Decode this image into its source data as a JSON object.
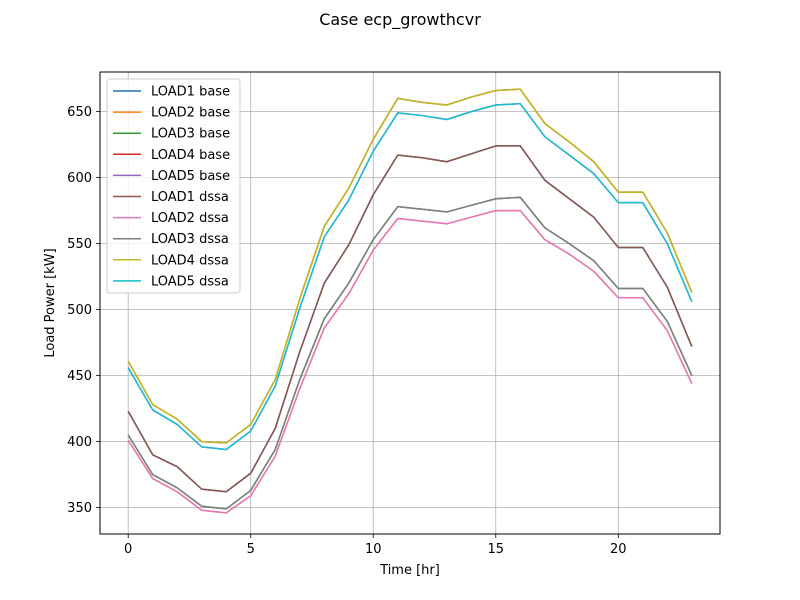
{
  "chart_data": {
    "type": "line",
    "title": "Case ecp_growthcvr",
    "xlabel": "Time [hr]",
    "ylabel": "Load Power [kW]",
    "xlim": [
      -1.15,
      24.15
    ],
    "ylim": [
      330,
      680
    ],
    "xticks": [
      0,
      5,
      10,
      15,
      20
    ],
    "yticks": [
      350,
      400,
      450,
      500,
      550,
      600,
      650
    ],
    "grid": true,
    "legend_position": "upper-left",
    "x": [
      0,
      1,
      2,
      3,
      4,
      5,
      6,
      7,
      8,
      9,
      10,
      11,
      12,
      13,
      14,
      15,
      16,
      17,
      18,
      19,
      20,
      21,
      22,
      23
    ],
    "series": [
      {
        "name": "LOAD1 base",
        "color": "#1f77b4",
        "values": [
          423,
          390,
          381,
          364,
          362,
          376,
          410,
          468,
          520,
          549,
          587,
          617,
          615,
          612,
          618,
          624,
          624,
          598,
          584,
          570,
          547,
          547,
          517,
          472
        ]
      },
      {
        "name": "LOAD2 base",
        "color": "#ff7f0e",
        "values": [
          401,
          372,
          362,
          348,
          346,
          359,
          389,
          440,
          486,
          512,
          545,
          569,
          567,
          565,
          570,
          575,
          575,
          553,
          542,
          529,
          509,
          509,
          484,
          444
        ]
      },
      {
        "name": "LOAD3 base",
        "color": "#2ca02c",
        "values": [
          405,
          375,
          365,
          351,
          349,
          363,
          394,
          447,
          493,
          520,
          553,
          578,
          576,
          574,
          579,
          584,
          585,
          562,
          550,
          537,
          516,
          516,
          491,
          450
        ]
      },
      {
        "name": "LOAD4 base",
        "color": "#d62728",
        "values": [
          461,
          428,
          417,
          400,
          399,
          413,
          447,
          508,
          563,
          592,
          629,
          660,
          657,
          655,
          661,
          666,
          667,
          641,
          627,
          612,
          589,
          589,
          558,
          513
        ]
      },
      {
        "name": "LOAD5 base",
        "color": "#9467bd",
        "values": [
          456,
          424,
          413,
          396,
          394,
          408,
          442,
          501,
          555,
          583,
          620,
          649,
          647,
          644,
          650,
          655,
          656,
          631,
          617,
          603,
          581,
          581,
          550,
          506
        ]
      },
      {
        "name": "LOAD1 dssa",
        "color": "#8c564b",
        "values": [
          423,
          390,
          381,
          364,
          362,
          376,
          410,
          468,
          520,
          549,
          587,
          617,
          615,
          612,
          618,
          624,
          624,
          598,
          584,
          570,
          547,
          547,
          517,
          472
        ]
      },
      {
        "name": "LOAD2 dssa",
        "color": "#e377c2",
        "values": [
          401,
          372,
          362,
          348,
          346,
          359,
          389,
          440,
          486,
          512,
          545,
          569,
          567,
          565,
          570,
          575,
          575,
          553,
          542,
          529,
          509,
          509,
          484,
          444
        ]
      },
      {
        "name": "LOAD3 dssa",
        "color": "#7f7f7f",
        "values": [
          405,
          375,
          365,
          351,
          349,
          363,
          394,
          447,
          493,
          520,
          553,
          578,
          576,
          574,
          579,
          584,
          585,
          562,
          550,
          537,
          516,
          516,
          491,
          450
        ]
      },
      {
        "name": "LOAD4 dssa",
        "color": "#bcbd22",
        "values": [
          461,
          428,
          417,
          400,
          399,
          413,
          447,
          508,
          563,
          592,
          629,
          660,
          657,
          655,
          661,
          666,
          667,
          641,
          627,
          612,
          589,
          589,
          558,
          513
        ]
      },
      {
        "name": "LOAD5 dssa",
        "color": "#17becf",
        "values": [
          456,
          424,
          413,
          396,
          394,
          408,
          442,
          501,
          555,
          583,
          620,
          649,
          647,
          644,
          650,
          655,
          656,
          631,
          617,
          603,
          581,
          581,
          550,
          506
        ]
      }
    ]
  }
}
